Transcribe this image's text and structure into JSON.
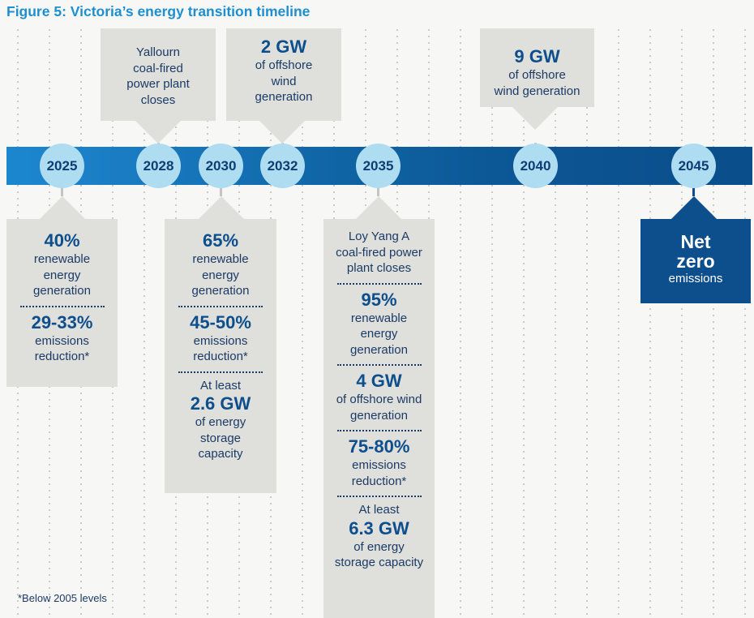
{
  "title": "Figure 5: Victoria’s energy transition timeline",
  "colors": {
    "title": "#1d8fd1",
    "band_start": "#1b87cf",
    "band_end": "#0a4e8b",
    "year_circle": "#aedcf1",
    "box": "#dfdfdc",
    "dark_box": "#0d4e8d",
    "text": "#1b3b66"
  },
  "years": [
    "2025",
    "2028",
    "2030",
    "2032",
    "2035",
    "2040",
    "2045"
  ],
  "above": {
    "y2028": {
      "lines": [
        "Yallourn",
        "coal-fired",
        "power plant",
        "closes"
      ]
    },
    "y2032": {
      "value": "2 GW",
      "lines": [
        "of offshore",
        "wind",
        "generation"
      ]
    },
    "y2040": {
      "value": "9 GW",
      "lines": [
        "of offshore",
        "wind generation"
      ]
    }
  },
  "below": {
    "y2025": [
      {
        "value": "40%",
        "lines": [
          "renewable",
          "energy",
          "generation"
        ]
      },
      {
        "value": "29-33%",
        "lines": [
          "emissions",
          "reduction*"
        ]
      }
    ],
    "y2030": [
      {
        "value": "65%",
        "lines": [
          "renewable",
          "energy",
          "generation"
        ]
      },
      {
        "value": "45-50%",
        "lines": [
          "emissions",
          "reduction*"
        ]
      },
      {
        "pre": "At least",
        "value": "2.6 GW",
        "lines": [
          "of energy",
          "storage",
          "capacity"
        ]
      }
    ],
    "y2035": [
      {
        "lines": [
          "Loy Yang A",
          "coal-fired power",
          "plant closes"
        ]
      },
      {
        "value": "95%",
        "lines": [
          "renewable",
          "energy",
          "generation"
        ]
      },
      {
        "value": "4 GW",
        "lines": [
          "of offshore wind",
          "generation"
        ]
      },
      {
        "value": "75-80%",
        "lines": [
          "emissions",
          "reduction*"
        ]
      },
      {
        "pre": "At least",
        "value": "6.3 GW",
        "lines": [
          "of energy",
          "storage capacity"
        ]
      }
    ],
    "y2045": [
      {
        "value_lines": [
          "Net",
          "zero"
        ],
        "lines": [
          "emissions"
        ]
      }
    ]
  },
  "footnote": "*Below 2005 levels"
}
